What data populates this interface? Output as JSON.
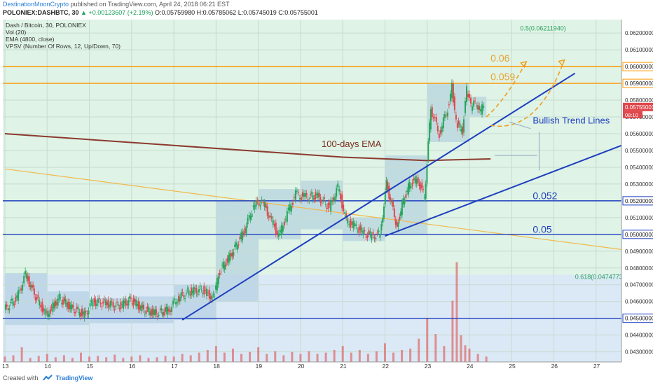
{
  "header": {
    "author": "DestinationMoonCrypto",
    "published": "published on TradingView.com, April 24, 2018 06:21 EST",
    "symbol": "POLONIEX:DASHBTC, 30",
    "change": "▲ +0.00123607 (+2.19%)",
    "ohlc": {
      "o_label": "O:",
      "o": "0.05759980",
      "h_label": "H:",
      "h": "0.05785062",
      "l_label": "L:",
      "l": "0.05745019",
      "c_label": "C:",
      "c": "0.05755001"
    }
  },
  "legend": [
    "Dash / Bitcoin, 30, POLONIEX",
    "Vol (20)",
    "EMA (4800, close)",
    "VPSV (Number Of Rows, 12, Up/Down, 70)"
  ],
  "footer": {
    "created_with": "Created with",
    "brand": "TradingView"
  },
  "chart_data": {
    "type": "candlestick",
    "x_ticks": [
      "13",
      "14",
      "15",
      "16",
      "17",
      "18",
      "19",
      "20",
      "21",
      "22",
      "23",
      "24",
      "25",
      "26",
      "27"
    ],
    "y_ticks": [
      "0.06200000",
      "0.06100000",
      "0.06000000",
      "0.05900000",
      "0.05800000",
      "0.05755001",
      "0.05700000",
      "0.05600000",
      "0.05500000",
      "0.05400000",
      "0.05300000",
      "0.05200000",
      "0.05100000",
      "0.05000000",
      "0.04900000",
      "0.04800000",
      "0.04700000",
      "0.04600000",
      "0.04500000",
      "0.04400000",
      "0.04300000"
    ],
    "ylim": [
      0.0424,
      0.0628
    ],
    "price_label": "0.05755001",
    "countdown": "08:10",
    "horizontal_levels": [
      {
        "value": 0.06,
        "color": "#ff9800"
      },
      {
        "value": 0.059,
        "color": "#ff9800"
      },
      {
        "value": 0.052,
        "color": "#1e3fbf"
      },
      {
        "value": 0.05,
        "color": "#1e3fbf"
      },
      {
        "value": 0.045,
        "color": "#1e3fbf"
      }
    ],
    "fib_labels": [
      "0.5(0.06211940)",
      "0.618(0.04747734)"
    ],
    "series": [
      {
        "type": "ema",
        "points": [
          [
            13.0,
            0.056
          ],
          [
            17.0,
            0.0553
          ],
          [
            21.0,
            0.0546
          ],
          [
            23.0,
            0.0544
          ],
          [
            24.5,
            0.0545
          ]
        ],
        "color": "#8b3a2e"
      },
      {
        "type": "ema",
        "points": [
          [
            13.0,
            0.0539
          ],
          [
            27.6,
            0.0491
          ]
        ],
        "color": "#f2b84b"
      }
    ],
    "price_path": [
      [
        13.0,
        0.0455
      ],
      [
        13.3,
        0.0462
      ],
      [
        13.5,
        0.0476
      ],
      [
        13.8,
        0.046
      ],
      [
        14.0,
        0.0452
      ],
      [
        14.3,
        0.0462
      ],
      [
        14.6,
        0.0456
      ],
      [
        14.9,
        0.0452
      ],
      [
        15.1,
        0.046
      ],
      [
        15.4,
        0.0459
      ],
      [
        15.7,
        0.0457
      ],
      [
        16.0,
        0.0461
      ],
      [
        16.3,
        0.0455
      ],
      [
        16.6,
        0.0453
      ],
      [
        16.9,
        0.0455
      ],
      [
        17.1,
        0.0462
      ],
      [
        17.4,
        0.0466
      ],
      [
        17.7,
        0.0467
      ],
      [
        17.95,
        0.0462
      ],
      [
        18.1,
        0.0478
      ],
      [
        18.4,
        0.0489
      ],
      [
        18.7,
        0.0503
      ],
      [
        18.9,
        0.0517
      ],
      [
        19.1,
        0.052
      ],
      [
        19.3,
        0.051
      ],
      [
        19.5,
        0.0499
      ],
      [
        19.7,
        0.0512
      ],
      [
        19.9,
        0.0524
      ],
      [
        20.1,
        0.0522
      ],
      [
        20.4,
        0.0523
      ],
      [
        20.7,
        0.0516
      ],
      [
        20.9,
        0.0528
      ],
      [
        21.1,
        0.0508
      ],
      [
        21.3,
        0.0505
      ],
      [
        21.5,
        0.0501
      ],
      [
        21.7,
        0.0499
      ],
      [
        21.9,
        0.05
      ],
      [
        22.05,
        0.053
      ],
      [
        22.3,
        0.0505
      ],
      [
        22.45,
        0.052
      ],
      [
        22.6,
        0.053
      ],
      [
        22.8,
        0.0533
      ],
      [
        22.95,
        0.0522
      ],
      [
        23.1,
        0.0575
      ],
      [
        23.3,
        0.056
      ],
      [
        23.5,
        0.0575
      ],
      [
        23.6,
        0.0588
      ],
      [
        23.7,
        0.0566
      ],
      [
        23.85,
        0.0562
      ],
      [
        23.95,
        0.0586
      ],
      [
        24.05,
        0.0576
      ],
      [
        24.15,
        0.0578
      ],
      [
        24.25,
        0.0573
      ],
      [
        24.35,
        0.0576
      ]
    ],
    "volume": [
      [
        13.0,
        8
      ],
      [
        13.2,
        10
      ],
      [
        13.4,
        22
      ],
      [
        13.6,
        6
      ],
      [
        13.8,
        9
      ],
      [
        14.0,
        12
      ],
      [
        14.2,
        7
      ],
      [
        14.4,
        10
      ],
      [
        14.6,
        6
      ],
      [
        14.8,
        14
      ],
      [
        15.0,
        8
      ],
      [
        15.2,
        9
      ],
      [
        15.4,
        7
      ],
      [
        15.6,
        11
      ],
      [
        15.8,
        6
      ],
      [
        16.0,
        8
      ],
      [
        16.2,
        10
      ],
      [
        16.4,
        6
      ],
      [
        16.6,
        7
      ],
      [
        16.8,
        9
      ],
      [
        17.0,
        8
      ],
      [
        17.2,
        12
      ],
      [
        17.4,
        10
      ],
      [
        17.6,
        14
      ],
      [
        17.8,
        18
      ],
      [
        18.0,
        24
      ],
      [
        18.2,
        14
      ],
      [
        18.4,
        20
      ],
      [
        18.6,
        12
      ],
      [
        18.8,
        15
      ],
      [
        19.0,
        22
      ],
      [
        19.2,
        12
      ],
      [
        19.4,
        16
      ],
      [
        19.6,
        10
      ],
      [
        19.8,
        15
      ],
      [
        20.0,
        12
      ],
      [
        20.2,
        16
      ],
      [
        20.4,
        12
      ],
      [
        20.6,
        14
      ],
      [
        20.8,
        18
      ],
      [
        21.0,
        24
      ],
      [
        21.2,
        14
      ],
      [
        21.4,
        18
      ],
      [
        21.6,
        12
      ],
      [
        21.8,
        16
      ],
      [
        22.0,
        28
      ],
      [
        22.2,
        14
      ],
      [
        22.4,
        18
      ],
      [
        22.6,
        20
      ],
      [
        22.8,
        35
      ],
      [
        23.0,
        66
      ],
      [
        23.2,
        42
      ],
      [
        23.4,
        24
      ],
      [
        23.6,
        92
      ],
      [
        23.7,
        150
      ],
      [
        23.8,
        40
      ],
      [
        23.9,
        25
      ],
      [
        24.0,
        20
      ],
      [
        24.2,
        12
      ],
      [
        24.4,
        8
      ]
    ],
    "annotations": [
      {
        "text": "0.06",
        "color": "#e8a430",
        "x": 24.5,
        "y": 0.0603
      },
      {
        "text": "0.059",
        "color": "#e8a430",
        "x": 24.5,
        "y": 0.0592
      },
      {
        "text": "100-days EMA",
        "color": "#7a2e1e",
        "x": 20.5,
        "y": 0.0552
      },
      {
        "text": "Bullish Trend Lines",
        "color": "#1e3fbf",
        "x": 25.5,
        "y": 0.0566
      },
      {
        "text": "0.052",
        "color": "#1e3fbf",
        "x": 25.5,
        "y": 0.0521
      },
      {
        "text": "0.05",
        "color": "#1e3fbf",
        "x": 25.5,
        "y": 0.0501
      }
    ],
    "trend_lines": [
      {
        "from": [
          17.2,
          0.0449
        ],
        "to": [
          26.5,
          0.0596
        ],
        "color": "#1e3fbf"
      },
      {
        "from": [
          22.0,
          0.0499
        ],
        "to": [
          27.6,
          0.0553
        ],
        "color": "#1e3fbf"
      }
    ]
  }
}
